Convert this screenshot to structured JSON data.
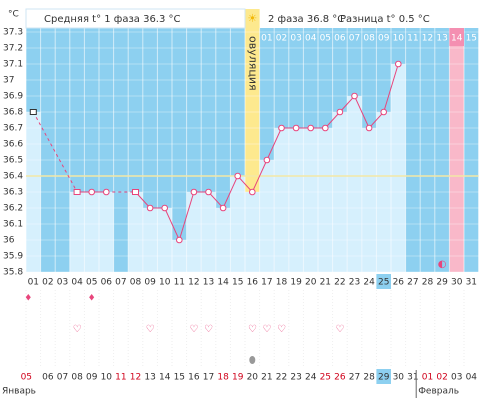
{
  "header": {
    "unit": "°C",
    "phase1": "Средняя t° 1 фаза 36.3 °C",
    "phase2": "2 фаза 36.8 °C",
    "difference": "Разница t° 0.5 °C"
  },
  "chart_data": {
    "type": "line",
    "categories": [
      "01",
      "02",
      "03",
      "04",
      "05",
      "06",
      "07",
      "08",
      "09",
      "10",
      "11",
      "12",
      "13",
      "14",
      "15",
      "16",
      "17",
      "18",
      "19",
      "20",
      "21",
      "22",
      "23",
      "24",
      "25",
      "26",
      "27",
      "28",
      "29",
      "30",
      "31"
    ],
    "values": [
      36.8,
      null,
      null,
      36.3,
      36.3,
      36.3,
      null,
      36.3,
      36.2,
      36.2,
      36.0,
      36.3,
      36.3,
      36.2,
      36.4,
      36.3,
      36.5,
      36.7,
      36.7,
      36.7,
      36.7,
      36.8,
      36.9,
      36.7,
      36.8,
      37.1,
      null,
      null,
      null,
      null,
      null
    ],
    "phase2_days": [
      null,
      null,
      null,
      null,
      null,
      null,
      null,
      null,
      null,
      null,
      null,
      null,
      null,
      null,
      null,
      "овуляция",
      "01",
      "02",
      "03",
      "04",
      "05",
      "06",
      "07",
      "08",
      "09",
      "10",
      "11",
      "12",
      "13",
      "14",
      "15"
    ],
    "cover_line": 36.4,
    "ylim": [
      35.8,
      37.3
    ],
    "yticks": [
      37.3,
      37.2,
      37.1,
      37,
      36.9,
      36.8,
      36.7,
      36.6,
      36.5,
      36.4,
      36.3,
      36.2,
      36.1,
      36,
      35.9,
      35.8
    ],
    "line_color": "#e8457c",
    "bar_color": "#d6f0fd",
    "background_color": "#8dd0f0"
  },
  "dates": [
    {
      "label": "05",
      "weekend": true
    },
    {
      "label": "06",
      "weekend": false
    },
    {
      "label": "07",
      "weekend": false
    },
    {
      "label": "08",
      "weekend": false
    },
    {
      "label": "09",
      "weekend": false
    },
    {
      "label": "10",
      "weekend": false
    },
    {
      "label": "11",
      "weekend": true
    },
    {
      "label": "12",
      "weekend": true
    },
    {
      "label": "13",
      "weekend": false
    },
    {
      "label": "14",
      "weekend": false
    },
    {
      "label": "15",
      "weekend": false
    },
    {
      "label": "16",
      "weekend": false
    },
    {
      "label": "17",
      "weekend": false
    },
    {
      "label": "18",
      "weekend": true
    },
    {
      "label": "19",
      "weekend": true
    },
    {
      "label": "20",
      "weekend": false
    },
    {
      "label": "21",
      "weekend": false
    },
    {
      "label": "22",
      "weekend": false
    },
    {
      "label": "23",
      "weekend": false
    },
    {
      "label": "24",
      "weekend": false
    },
    {
      "label": "25",
      "weekend": true
    },
    {
      "label": "26",
      "weekend": true
    },
    {
      "label": "27",
      "weekend": false
    },
    {
      "label": "28",
      "weekend": false
    },
    {
      "label": "29",
      "weekend": false
    },
    {
      "label": "30",
      "weekend": false
    },
    {
      "label": "31",
      "weekend": false
    },
    {
      "label": "01",
      "weekend": true
    },
    {
      "label": "02",
      "weekend": true
    },
    {
      "label": "03",
      "weekend": false
    },
    {
      "label": "04",
      "weekend": false
    }
  ],
  "months": [
    "Январь",
    "Февраль"
  ]
}
